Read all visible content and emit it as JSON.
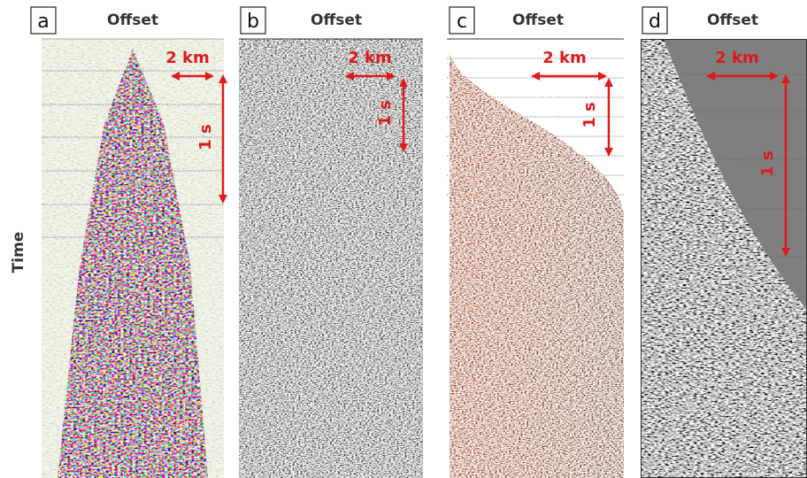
{
  "y_label": "Time",
  "panels": [
    {
      "label": "a",
      "title": "Offset",
      "distance": "2 km",
      "time": "1 s"
    },
    {
      "label": "b",
      "title": "Offset",
      "distance": "2 km",
      "time": "1 s"
    },
    {
      "label": "c",
      "title": "Offset",
      "distance": "2 km",
      "time": "1 s"
    },
    {
      "label": "d",
      "title": "Offset",
      "distance": "2 km",
      "time": "1 s"
    }
  ]
}
